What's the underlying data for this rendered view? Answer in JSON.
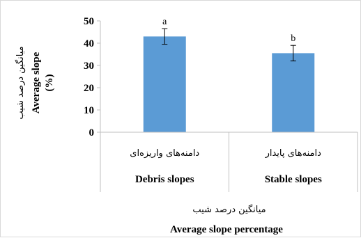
{
  "chart_data": {
    "type": "bar",
    "categories_fa": [
      "دامنه‌های واریزه‌ای",
      "دامنه‌های پایدار"
    ],
    "categories_en": [
      "Debris slopes",
      "Stable slopes"
    ],
    "values": [
      43,
      35.5
    ],
    "error": [
      3.5,
      3.5
    ],
    "significance_letters": [
      "a",
      "b"
    ],
    "ylabel_fa": "میانگین درصد شیب",
    "ylabel_en_line1": "Average slope",
    "ylabel_en_line2": "(%)",
    "xlabel_fa": "میانگین درصد شیب",
    "xlabel_en": "Average slope percentage",
    "ylim": [
      0,
      50
    ],
    "yticks": [
      0,
      10,
      20,
      30,
      40,
      50
    ],
    "bar_color": "#5b9bd5",
    "grid": false
  }
}
